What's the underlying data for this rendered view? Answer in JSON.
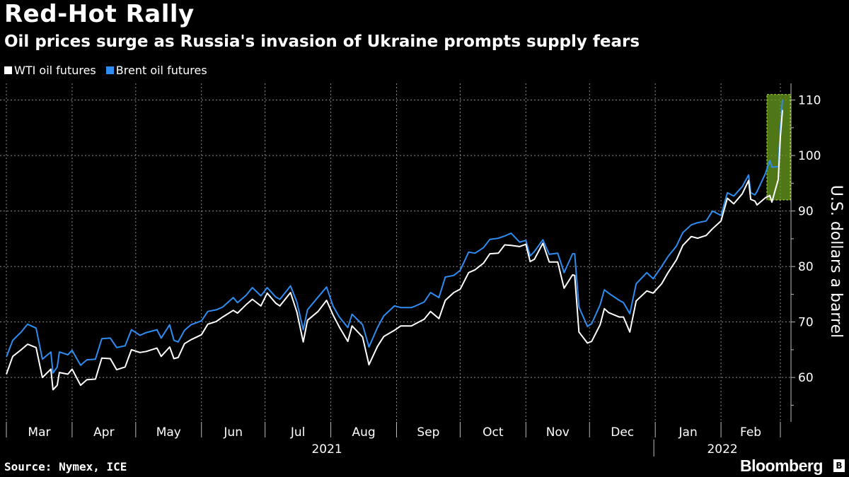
{
  "title": "Red-Hot Rally",
  "subtitle": "Oil prices surge as Russia's invasion of Ukraine prompts supply fears",
  "legend": [
    {
      "label": "WTI oil futures",
      "color": "#ffffff"
    },
    {
      "label": "Brent oil futures",
      "color": "#2f8cf0"
    }
  ],
  "source": "Source: Nymex, ICE",
  "brand": "Bloomberg",
  "brand_badge_icon": "bloomberg-b-icon",
  "highlight_color": "#6a9e1f",
  "chart_data": {
    "type": "line",
    "ylabel": "U.S. dollars a barrel",
    "ylim": [
      52,
      113
    ],
    "yticks": [
      60,
      70,
      80,
      90,
      100,
      110
    ],
    "x_months": [
      "Mar",
      "Apr",
      "May",
      "Jun",
      "Jul",
      "Aug",
      "Sep",
      "Oct",
      "Nov",
      "Dec",
      "Jan",
      "Feb"
    ],
    "x_years": [
      "2021",
      "2022"
    ],
    "grid": true,
    "legend_position": "top-left",
    "highlight": {
      "from": "2022-02-24",
      "to": "2022-03-01",
      "y_range": [
        92,
        111
      ]
    },
    "series": [
      {
        "name": "WTI oil futures",
        "color": "#ffffff",
        "points": [
          [
            "2021-03-01",
            60.6
          ],
          [
            "2021-03-04",
            63.8
          ],
          [
            "2021-03-08",
            65.0
          ],
          [
            "2021-03-11",
            66.0
          ],
          [
            "2021-03-15",
            65.4
          ],
          [
            "2021-03-18",
            60.0
          ],
          [
            "2021-03-22",
            61.5
          ],
          [
            "2021-03-23",
            57.8
          ],
          [
            "2021-03-25",
            58.6
          ],
          [
            "2021-03-26",
            60.9
          ],
          [
            "2021-03-30",
            60.6
          ],
          [
            "2021-04-01",
            61.5
          ],
          [
            "2021-04-05",
            58.6
          ],
          [
            "2021-04-08",
            59.6
          ],
          [
            "2021-04-12",
            59.7
          ],
          [
            "2021-04-15",
            63.5
          ],
          [
            "2021-04-19",
            63.4
          ],
          [
            "2021-04-22",
            61.4
          ],
          [
            "2021-04-26",
            61.9
          ],
          [
            "2021-04-29",
            65.0
          ],
          [
            "2021-05-03",
            64.5
          ],
          [
            "2021-05-06",
            64.7
          ],
          [
            "2021-05-11",
            65.3
          ],
          [
            "2021-05-13",
            63.8
          ],
          [
            "2021-05-17",
            65.5
          ],
          [
            "2021-05-19",
            63.4
          ],
          [
            "2021-05-21",
            63.6
          ],
          [
            "2021-05-24",
            66.1
          ],
          [
            "2021-05-27",
            66.8
          ],
          [
            "2021-06-01",
            67.7
          ],
          [
            "2021-06-04",
            69.6
          ],
          [
            "2021-06-08",
            70.1
          ],
          [
            "2021-06-11",
            70.9
          ],
          [
            "2021-06-16",
            72.1
          ],
          [
            "2021-06-18",
            71.6
          ],
          [
            "2021-06-22",
            73.1
          ],
          [
            "2021-06-25",
            74.1
          ],
          [
            "2021-06-29",
            72.9
          ],
          [
            "2021-07-02",
            75.2
          ],
          [
            "2021-07-06",
            73.4
          ],
          [
            "2021-07-08",
            72.9
          ],
          [
            "2021-07-13",
            75.3
          ],
          [
            "2021-07-16",
            71.8
          ],
          [
            "2021-07-19",
            66.4
          ],
          [
            "2021-07-21",
            70.3
          ],
          [
            "2021-07-26",
            71.9
          ],
          [
            "2021-07-30",
            73.9
          ],
          [
            "2021-08-02",
            71.3
          ],
          [
            "2021-08-05",
            69.1
          ],
          [
            "2021-08-09",
            66.5
          ],
          [
            "2021-08-11",
            69.3
          ],
          [
            "2021-08-16",
            67.3
          ],
          [
            "2021-08-19",
            62.3
          ],
          [
            "2021-08-23",
            65.6
          ],
          [
            "2021-08-26",
            67.4
          ],
          [
            "2021-08-31",
            68.5
          ],
          [
            "2021-09-03",
            69.3
          ],
          [
            "2021-09-08",
            69.3
          ],
          [
            "2021-09-10",
            69.7
          ],
          [
            "2021-09-14",
            70.5
          ],
          [
            "2021-09-17",
            71.9
          ],
          [
            "2021-09-21",
            70.6
          ],
          [
            "2021-09-24",
            73.9
          ],
          [
            "2021-09-28",
            75.3
          ],
          [
            "2021-10-01",
            75.9
          ],
          [
            "2021-10-05",
            78.9
          ],
          [
            "2021-10-08",
            79.4
          ],
          [
            "2021-10-12",
            80.6
          ],
          [
            "2021-10-15",
            82.3
          ],
          [
            "2021-10-19",
            82.4
          ],
          [
            "2021-10-22",
            83.9
          ],
          [
            "2021-10-25",
            83.8
          ],
          [
            "2021-10-29",
            83.6
          ],
          [
            "2021-11-01",
            84.0
          ],
          [
            "2021-11-03",
            80.9
          ],
          [
            "2021-11-05",
            81.3
          ],
          [
            "2021-11-09",
            84.2
          ],
          [
            "2021-11-12",
            80.8
          ],
          [
            "2021-11-16",
            80.8
          ],
          [
            "2021-11-19",
            76.1
          ],
          [
            "2021-11-23",
            78.5
          ],
          [
            "2021-11-24",
            78.4
          ],
          [
            "2021-11-26",
            68.2
          ],
          [
            "2021-11-30",
            66.2
          ],
          [
            "2021-12-02",
            66.5
          ],
          [
            "2021-12-06",
            69.5
          ],
          [
            "2021-12-08",
            72.4
          ],
          [
            "2021-12-10",
            71.7
          ],
          [
            "2021-12-15",
            70.9
          ],
          [
            "2021-12-17",
            70.9
          ],
          [
            "2021-12-20",
            68.2
          ],
          [
            "2021-12-23",
            73.8
          ],
          [
            "2021-12-28",
            75.6
          ],
          [
            "2021-12-31",
            75.2
          ],
          [
            "2022-01-04",
            76.9
          ],
          [
            "2022-01-07",
            78.9
          ],
          [
            "2022-01-11",
            81.2
          ],
          [
            "2022-01-14",
            83.8
          ],
          [
            "2022-01-18",
            85.4
          ],
          [
            "2022-01-21",
            85.1
          ],
          [
            "2022-01-25",
            85.6
          ],
          [
            "2022-01-28",
            86.8
          ],
          [
            "2022-02-01",
            88.2
          ],
          [
            "2022-02-04",
            92.3
          ],
          [
            "2022-02-07",
            91.3
          ],
          [
            "2022-02-11",
            93.1
          ],
          [
            "2022-02-14",
            95.5
          ],
          [
            "2022-02-15",
            92.1
          ],
          [
            "2022-02-17",
            91.8
          ],
          [
            "2022-02-18",
            91.1
          ],
          [
            "2022-02-22",
            92.4
          ],
          [
            "2022-02-24",
            92.8
          ],
          [
            "2022-02-25",
            91.6
          ],
          [
            "2022-02-28",
            95.7
          ],
          [
            "2022-03-01",
            103.4
          ],
          [
            "2022-03-02",
            108.2
          ]
        ]
      },
      {
        "name": "Brent oil futures",
        "color": "#2f8cf0",
        "points": [
          [
            "2021-03-01",
            63.7
          ],
          [
            "2021-03-04",
            66.7
          ],
          [
            "2021-03-08",
            68.2
          ],
          [
            "2021-03-11",
            69.6
          ],
          [
            "2021-03-15",
            68.9
          ],
          [
            "2021-03-18",
            63.3
          ],
          [
            "2021-03-22",
            64.6
          ],
          [
            "2021-03-23",
            60.8
          ],
          [
            "2021-03-25",
            61.9
          ],
          [
            "2021-03-26",
            64.6
          ],
          [
            "2021-03-30",
            64.1
          ],
          [
            "2021-04-01",
            64.9
          ],
          [
            "2021-04-05",
            62.2
          ],
          [
            "2021-04-08",
            63.2
          ],
          [
            "2021-04-12",
            63.3
          ],
          [
            "2021-04-15",
            67.0
          ],
          [
            "2021-04-19",
            67.1
          ],
          [
            "2021-04-22",
            65.4
          ],
          [
            "2021-04-26",
            65.7
          ],
          [
            "2021-04-29",
            68.6
          ],
          [
            "2021-05-03",
            67.6
          ],
          [
            "2021-05-06",
            68.1
          ],
          [
            "2021-05-11",
            68.6
          ],
          [
            "2021-05-13",
            67.1
          ],
          [
            "2021-05-17",
            69.5
          ],
          [
            "2021-05-19",
            66.7
          ],
          [
            "2021-05-21",
            66.4
          ],
          [
            "2021-05-24",
            68.5
          ],
          [
            "2021-05-27",
            69.5
          ],
          [
            "2021-06-01",
            70.2
          ],
          [
            "2021-06-04",
            71.9
          ],
          [
            "2021-06-08",
            72.2
          ],
          [
            "2021-06-11",
            72.7
          ],
          [
            "2021-06-16",
            74.4
          ],
          [
            "2021-06-18",
            73.5
          ],
          [
            "2021-06-22",
            74.8
          ],
          [
            "2021-06-25",
            76.2
          ],
          [
            "2021-06-29",
            74.7
          ],
          [
            "2021-07-02",
            76.2
          ],
          [
            "2021-07-06",
            74.5
          ],
          [
            "2021-07-08",
            74.1
          ],
          [
            "2021-07-13",
            76.5
          ],
          [
            "2021-07-16",
            73.6
          ],
          [
            "2021-07-19",
            68.6
          ],
          [
            "2021-07-21",
            72.2
          ],
          [
            "2021-07-26",
            74.5
          ],
          [
            "2021-07-30",
            76.3
          ],
          [
            "2021-08-02",
            72.9
          ],
          [
            "2021-08-05",
            70.9
          ],
          [
            "2021-08-09",
            69.0
          ],
          [
            "2021-08-11",
            71.4
          ],
          [
            "2021-08-16",
            69.5
          ],
          [
            "2021-08-19",
            65.5
          ],
          [
            "2021-08-23",
            69.0
          ],
          [
            "2021-08-26",
            71.1
          ],
          [
            "2021-08-31",
            72.9
          ],
          [
            "2021-09-03",
            72.6
          ],
          [
            "2021-09-08",
            72.6
          ],
          [
            "2021-09-10",
            72.9
          ],
          [
            "2021-09-14",
            73.6
          ],
          [
            "2021-09-17",
            75.3
          ],
          [
            "2021-09-21",
            74.4
          ],
          [
            "2021-09-24",
            78.1
          ],
          [
            "2021-09-28",
            78.4
          ],
          [
            "2021-10-01",
            79.3
          ],
          [
            "2021-10-05",
            82.6
          ],
          [
            "2021-10-08",
            82.4
          ],
          [
            "2021-10-12",
            83.4
          ],
          [
            "2021-10-15",
            84.9
          ],
          [
            "2021-10-19",
            85.1
          ],
          [
            "2021-10-22",
            85.5
          ],
          [
            "2021-10-25",
            86.0
          ],
          [
            "2021-10-29",
            84.4
          ],
          [
            "2021-11-01",
            84.7
          ],
          [
            "2021-11-03",
            81.9
          ],
          [
            "2021-11-05",
            82.7
          ],
          [
            "2021-11-09",
            84.8
          ],
          [
            "2021-11-12",
            82.2
          ],
          [
            "2021-11-16",
            82.4
          ],
          [
            "2021-11-19",
            78.9
          ],
          [
            "2021-11-23",
            82.3
          ],
          [
            "2021-11-24",
            82.3
          ],
          [
            "2021-11-26",
            72.7
          ],
          [
            "2021-11-30",
            69.2
          ],
          [
            "2021-12-02",
            69.7
          ],
          [
            "2021-12-06",
            73.1
          ],
          [
            "2021-12-08",
            75.8
          ],
          [
            "2021-12-10",
            75.2
          ],
          [
            "2021-12-15",
            73.9
          ],
          [
            "2021-12-17",
            73.5
          ],
          [
            "2021-12-20",
            71.5
          ],
          [
            "2021-12-23",
            76.9
          ],
          [
            "2021-12-28",
            78.9
          ],
          [
            "2021-12-31",
            77.8
          ],
          [
            "2022-01-04",
            80.0
          ],
          [
            "2022-01-07",
            81.8
          ],
          [
            "2022-01-11",
            83.7
          ],
          [
            "2022-01-14",
            86.1
          ],
          [
            "2022-01-18",
            87.5
          ],
          [
            "2022-01-21",
            87.9
          ],
          [
            "2022-01-25",
            88.2
          ],
          [
            "2022-01-28",
            90.0
          ],
          [
            "2022-02-01",
            89.2
          ],
          [
            "2022-02-04",
            93.3
          ],
          [
            "2022-02-07",
            92.7
          ],
          [
            "2022-02-11",
            94.4
          ],
          [
            "2022-02-14",
            96.5
          ],
          [
            "2022-02-15",
            93.3
          ],
          [
            "2022-02-17",
            92.9
          ],
          [
            "2022-02-18",
            93.5
          ],
          [
            "2022-02-22",
            96.8
          ],
          [
            "2022-02-24",
            99.1
          ],
          [
            "2022-02-25",
            97.9
          ],
          [
            "2022-02-28",
            98.0
          ],
          [
            "2022-03-01",
            104.9
          ],
          [
            "2022-03-02",
            110.1
          ]
        ]
      }
    ]
  }
}
